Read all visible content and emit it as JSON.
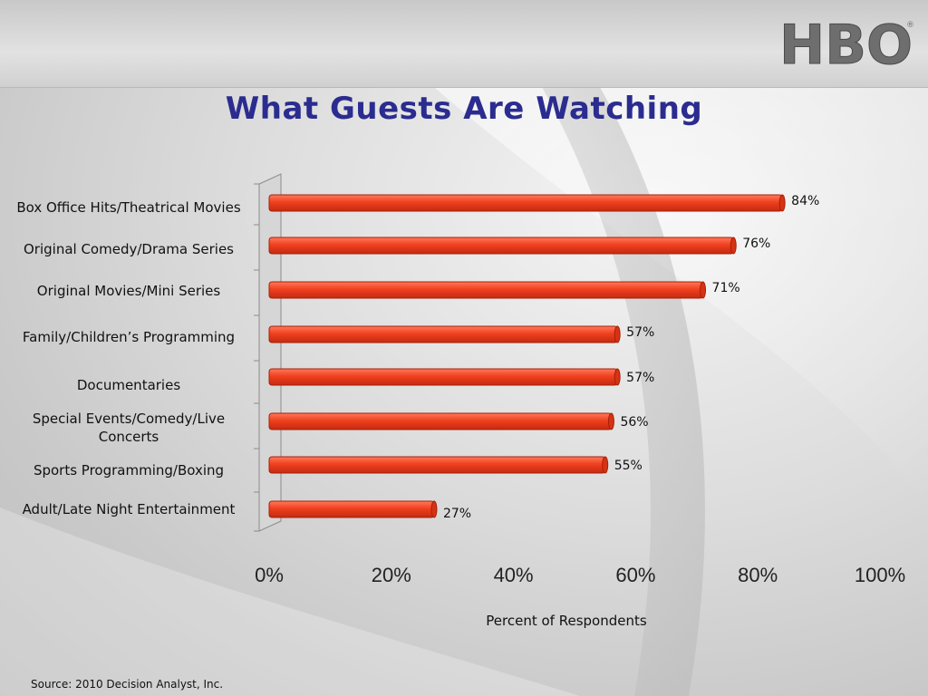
{
  "logo_text": "HBO",
  "chart_data": {
    "type": "bar",
    "orientation": "horizontal",
    "title": "What Guests Are Watching",
    "xlabel": "Percent of Respondents",
    "ylabel": "",
    "categories": [
      "Box Office Hits/Theatrical Movies",
      "Original Comedy/Drama Series",
      "Original Movies/Mini Series",
      "Family/Children’s Programming",
      "Documentaries",
      "Special Events/Comedy/Live Concerts",
      "Sports Programming/Boxing",
      "Adult/Late Night Entertainment"
    ],
    "values": [
      84,
      76,
      71,
      57,
      57,
      56,
      55,
      27
    ],
    "value_labels": [
      "84%",
      "76%",
      "71%",
      "57%",
      "57%",
      "56%",
      "55%",
      "27%"
    ],
    "xlim": [
      0,
      100
    ],
    "xticks": [
      "0%",
      "20%",
      "40%",
      "60%",
      "80%",
      "100%"
    ],
    "grid": false,
    "bar_color": "#f0401f"
  },
  "source": "Source: 2010 Decision Analyst, Inc."
}
